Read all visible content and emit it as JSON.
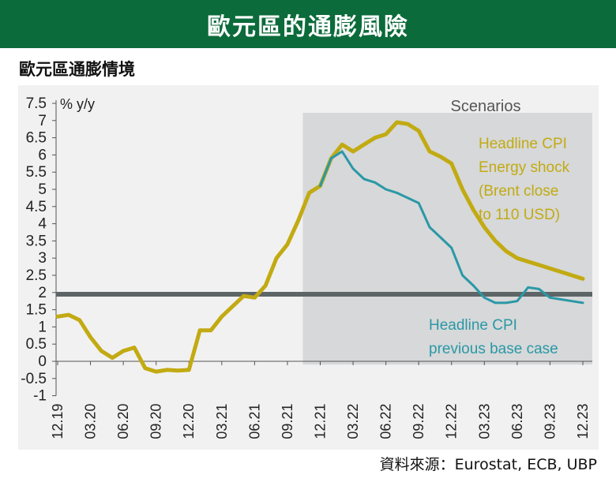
{
  "banner_title": "歐元區的通膨風險",
  "subtitle": "歐元區通膨情境",
  "source": "資料來源：Eurostat, ECB, UBP",
  "colors": {
    "banner": "#0b6b3a",
    "energy_shock": "#c2aa12",
    "base_case": "#2a98a6",
    "target_line": "#5d6566",
    "scenario_band": "#d6d8d9"
  },
  "chart_data": {
    "type": "line",
    "ylabel": "% y/y",
    "ylim": [
      -1,
      7.5
    ],
    "yticks": [
      "7.5",
      "7",
      "6.5",
      "6",
      "5.5",
      "5",
      "4.5",
      "4",
      "3.5",
      "3",
      "2.5",
      "2",
      "1.5",
      "1",
      "0.5",
      "0",
      "-0.5",
      "-1"
    ],
    "ytick_values": [
      7.5,
      7,
      6.5,
      6,
      5.5,
      5,
      4.5,
      4,
      3.5,
      3,
      2.5,
      2,
      1.5,
      1,
      0.5,
      0,
      -0.5,
      -1
    ],
    "xticks": [
      "12.19",
      "03.20",
      "06.20",
      "09.20",
      "12.20",
      "03.21",
      "06.21",
      "09.21",
      "12.21",
      "03.22",
      "06.22",
      "09.22",
      "12.22",
      "03.23",
      "06.23",
      "09.23",
      "12.23"
    ],
    "scenario_label": "Scenarios",
    "scenario_start_month": 24,
    "target_value": 1.95,
    "series": [
      {
        "name": "Headline CPI Energy shock (Brent close to 110 USD)",
        "label_lines": [
          "Headline CPI",
          "Energy shock",
          "(Brent close",
          "to 110 USD)"
        ],
        "color_key": "energy_shock",
        "x": [
          0,
          1,
          2,
          3,
          4,
          5,
          6,
          7,
          8,
          9,
          10,
          11,
          12,
          13,
          14,
          15,
          16,
          17,
          18,
          19,
          20,
          21,
          22,
          23,
          24,
          25,
          26,
          27,
          28,
          29,
          30,
          31,
          32,
          33,
          34,
          35,
          36,
          37,
          38,
          39,
          40,
          41,
          42,
          43,
          44,
          45,
          46,
          47,
          48
        ],
        "values": [
          1.3,
          1.35,
          1.2,
          0.7,
          0.3,
          0.1,
          0.3,
          0.4,
          -0.2,
          -0.3,
          -0.25,
          -0.27,
          -0.25,
          0.9,
          0.9,
          1.3,
          1.6,
          1.9,
          1.85,
          2.2,
          3.0,
          3.4,
          4.1,
          4.9,
          5.1,
          5.9,
          6.3,
          6.1,
          6.3,
          6.5,
          6.6,
          6.95,
          6.9,
          6.7,
          6.1,
          5.95,
          5.75,
          5.0,
          4.4,
          3.9,
          3.5,
          3.2,
          3.0,
          2.9,
          2.8,
          2.7,
          2.6,
          2.5,
          2.4
        ]
      },
      {
        "name": "Headline CPI previous base case",
        "label_lines": [
          "Headline CPI",
          "previous base case"
        ],
        "color_key": "base_case",
        "x": [
          24,
          25,
          26,
          27,
          28,
          29,
          30,
          31,
          32,
          33,
          34,
          35,
          36,
          37,
          38,
          39,
          40,
          41,
          42,
          43,
          44,
          45,
          46,
          47,
          48
        ],
        "values": [
          5.1,
          5.9,
          6.1,
          5.6,
          5.3,
          5.2,
          5.0,
          4.9,
          4.75,
          4.6,
          3.9,
          3.6,
          3.3,
          2.5,
          2.2,
          1.85,
          1.7,
          1.7,
          1.75,
          2.15,
          2.1,
          1.85,
          1.8,
          1.75,
          1.7
        ]
      }
    ]
  }
}
